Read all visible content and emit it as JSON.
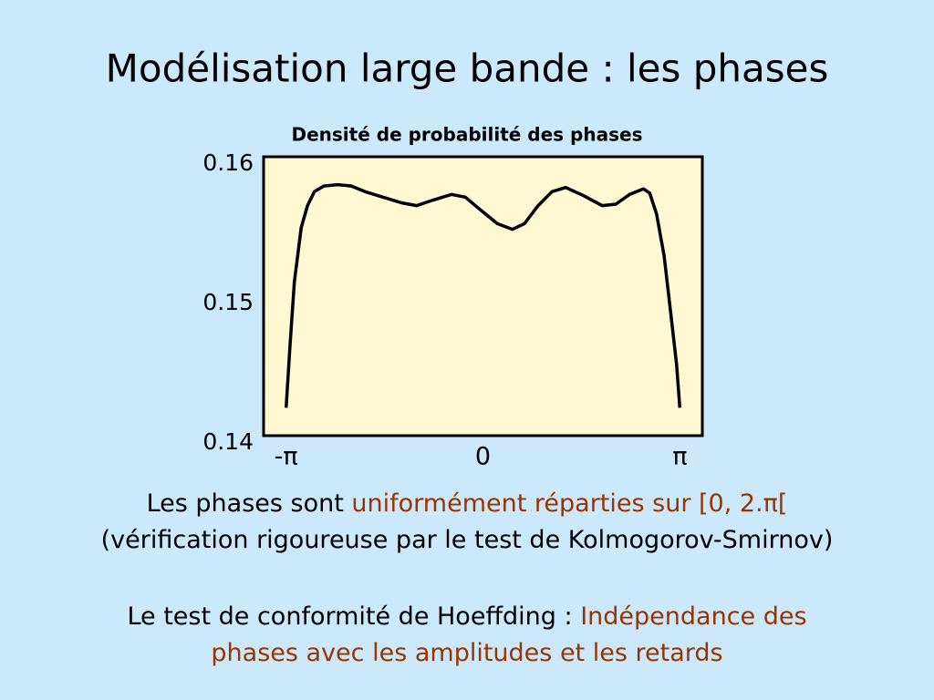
{
  "header": {
    "title": "Modélisation large bande : les phases"
  },
  "chart_data": {
    "type": "line",
    "title": "Densité de probabilité des phases",
    "x": [
      -3.14,
      -3.08,
      -3.01,
      -2.9,
      -2.8,
      -2.69,
      -2.54,
      -2.32,
      -2.1,
      -1.88,
      -1.59,
      -1.3,
      -1.06,
      -0.79,
      -0.5,
      -0.28,
      -0.07,
      0.23,
      0.47,
      0.66,
      0.88,
      1.1,
      1.32,
      1.61,
      1.9,
      2.12,
      2.34,
      2.56,
      2.66,
      2.77,
      2.89,
      2.99,
      3.09,
      3.14
    ],
    "values": [
      0.142,
      0.1464,
      0.151,
      0.1549,
      0.1565,
      0.1575,
      0.1579,
      0.158,
      0.1579,
      0.1575,
      0.1571,
      0.1567,
      0.1565,
      0.1569,
      0.1573,
      0.1571,
      0.1563,
      0.1552,
      0.1548,
      0.1552,
      0.1565,
      0.1575,
      0.1578,
      0.1572,
      0.1565,
      0.1566,
      0.1573,
      0.1577,
      0.1574,
      0.1559,
      0.1529,
      0.149,
      0.1451,
      0.142
    ],
    "color": "#000000",
    "xlim": [
      -3.5,
      3.5
    ],
    "xticks": [
      {
        "value": -3.1416,
        "label": "-π"
      },
      {
        "value": 0,
        "label": "0"
      },
      {
        "value": 3.1416,
        "label": "π"
      }
    ],
    "ylim": [
      0.14,
      0.16
    ],
    "yticks": [
      0.14,
      0.15,
      0.16
    ],
    "grid": false
  },
  "body": {
    "paragraph1": {
      "line1": [
        "Les phases sont",
        "uniformément réparties sur [0, 2.π["
      ],
      "line2": "(vérification rigoureuse par le test de Kolmogorov-Smirnov)"
    },
    "paragraph2": {
      "line1": [
        "Le test de conformité de Hoeffding :",
        "Indépendance des"
      ],
      "line2": "phases avec les amplitudes et les retards"
    }
  }
}
